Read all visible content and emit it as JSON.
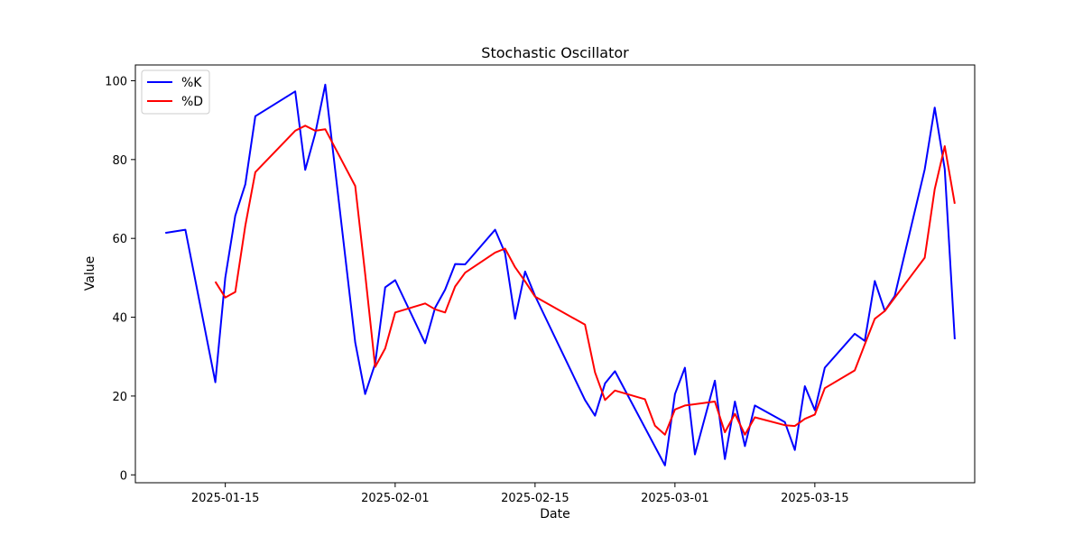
{
  "chart_data": {
    "type": "line",
    "title": "Stochastic Oscillator",
    "xlabel": "Date",
    "ylabel": "Value",
    "xlim": [
      "2025-01-06",
      "2025-03-31"
    ],
    "ylim": [
      -2,
      104
    ],
    "x_ticks": [
      "2025-01-15",
      "2025-02-01",
      "2025-02-15",
      "2025-03-01",
      "2025-03-15"
    ],
    "y_ticks": [
      0,
      20,
      40,
      60,
      80,
      100
    ],
    "grid": false,
    "legend_position": "upper-left",
    "series": [
      {
        "name": "%K",
        "color": "#0000ff",
        "points": [
          [
            "2025-01-09",
            61.4
          ],
          [
            "2025-01-11",
            62.2
          ],
          [
            "2025-01-14",
            23.5
          ],
          [
            "2025-01-15",
            50.0
          ],
          [
            "2025-01-16",
            65.8
          ],
          [
            "2025-01-17",
            73.7
          ],
          [
            "2025-01-18",
            91.0
          ],
          [
            "2025-01-22",
            97.3
          ],
          [
            "2025-01-23",
            77.4
          ],
          [
            "2025-01-24",
            86.6
          ],
          [
            "2025-01-25",
            99.0
          ],
          [
            "2025-01-28",
            33.6
          ],
          [
            "2025-01-29",
            20.5
          ],
          [
            "2025-01-30",
            28.2
          ],
          [
            "2025-01-31",
            47.6
          ],
          [
            "2025-02-01",
            49.4
          ],
          [
            "2025-02-04",
            33.4
          ],
          [
            "2025-02-05",
            42.4
          ],
          [
            "2025-02-06",
            47.0
          ],
          [
            "2025-02-07",
            53.5
          ],
          [
            "2025-02-08",
            53.4
          ],
          [
            "2025-02-11",
            62.2
          ],
          [
            "2025-02-12",
            56.3
          ],
          [
            "2025-02-13",
            39.6
          ],
          [
            "2025-02-14",
            51.6
          ],
          [
            "2025-02-15",
            45.4
          ],
          [
            "2025-02-20",
            19.0
          ],
          [
            "2025-02-21",
            15.0
          ],
          [
            "2025-02-22",
            23.2
          ],
          [
            "2025-02-23",
            26.3
          ],
          [
            "2025-02-28",
            2.4
          ],
          [
            "2025-03-01",
            20.5
          ],
          [
            "2025-03-02",
            27.2
          ],
          [
            "2025-03-03",
            5.2
          ],
          [
            "2025-03-05",
            23.9
          ],
          [
            "2025-03-06",
            4.0
          ],
          [
            "2025-03-07",
            18.6
          ],
          [
            "2025-03-08",
            7.3
          ],
          [
            "2025-03-09",
            17.6
          ],
          [
            "2025-03-12",
            13.4
          ],
          [
            "2025-03-13",
            6.3
          ],
          [
            "2025-03-14",
            22.5
          ],
          [
            "2025-03-15",
            16.4
          ],
          [
            "2025-03-16",
            27.2
          ],
          [
            "2025-03-19",
            35.8
          ],
          [
            "2025-03-20",
            34.0
          ],
          [
            "2025-03-21",
            49.2
          ],
          [
            "2025-03-22",
            41.6
          ],
          [
            "2025-03-23",
            45.4
          ],
          [
            "2025-03-26",
            77.5
          ],
          [
            "2025-03-27",
            93.2
          ],
          [
            "2025-03-28",
            77.6
          ],
          [
            "2025-03-29",
            34.4
          ]
        ]
      },
      {
        "name": "%D",
        "color": "#ff0000",
        "points": [
          [
            "2025-01-14",
            49.0
          ],
          [
            "2025-01-15",
            45.0
          ],
          [
            "2025-01-16",
            46.4
          ],
          [
            "2025-01-17",
            63.2
          ],
          [
            "2025-01-18",
            76.8
          ],
          [
            "2025-01-22",
            87.3
          ],
          [
            "2025-01-23",
            88.6
          ],
          [
            "2025-01-24",
            87.3
          ],
          [
            "2025-01-25",
            87.7
          ],
          [
            "2025-01-28",
            73.3
          ],
          [
            "2025-01-29",
            51.0
          ],
          [
            "2025-01-30",
            27.4
          ],
          [
            "2025-01-31",
            32.1
          ],
          [
            "2025-02-01",
            41.2
          ],
          [
            "2025-02-04",
            43.5
          ],
          [
            "2025-02-05",
            42.0
          ],
          [
            "2025-02-06",
            41.2
          ],
          [
            "2025-02-07",
            47.8
          ],
          [
            "2025-02-08",
            51.3
          ],
          [
            "2025-02-11",
            56.4
          ],
          [
            "2025-02-12",
            57.4
          ],
          [
            "2025-02-13",
            52.7
          ],
          [
            "2025-02-14",
            49.1
          ],
          [
            "2025-02-15",
            45.2
          ],
          [
            "2025-02-20",
            38.1
          ],
          [
            "2025-02-21",
            26.0
          ],
          [
            "2025-02-22",
            19.0
          ],
          [
            "2025-02-23",
            21.4
          ],
          [
            "2025-02-26",
            19.2
          ],
          [
            "2025-02-27",
            12.5
          ],
          [
            "2025-02-28",
            10.2
          ],
          [
            "2025-03-01",
            16.6
          ],
          [
            "2025-03-02",
            17.6
          ],
          [
            "2025-03-05",
            18.6
          ],
          [
            "2025-03-06",
            10.8
          ],
          [
            "2025-03-07",
            15.5
          ],
          [
            "2025-03-08",
            10.2
          ],
          [
            "2025-03-09",
            14.6
          ],
          [
            "2025-03-12",
            12.6
          ],
          [
            "2025-03-13",
            12.4
          ],
          [
            "2025-03-14",
            14.2
          ],
          [
            "2025-03-15",
            15.3
          ],
          [
            "2025-03-16",
            22.0
          ],
          [
            "2025-03-19",
            26.5
          ],
          [
            "2025-03-20",
            33.1
          ],
          [
            "2025-03-21",
            39.6
          ],
          [
            "2025-03-22",
            41.6
          ],
          [
            "2025-03-26",
            55.1
          ],
          [
            "2025-03-27",
            72.5
          ],
          [
            "2025-03-28",
            83.4
          ],
          [
            "2025-03-29",
            68.8
          ]
        ]
      }
    ]
  }
}
